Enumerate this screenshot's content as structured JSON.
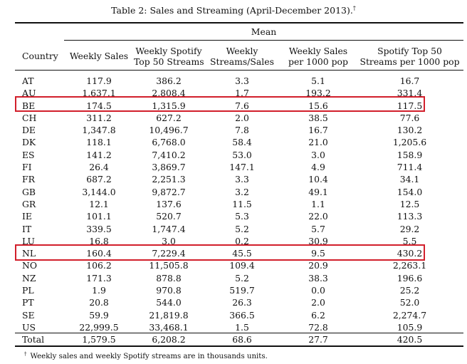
{
  "caption": "Table 2: Sales and Streaming (April-December 2013).",
  "caption_mark": "†",
  "table": {
    "group_header": "Mean",
    "columns": [
      {
        "line1": "Country",
        "line2": ""
      },
      {
        "line1": "Weekly Sales",
        "line2": ""
      },
      {
        "line1": "Weekly Spotify",
        "line2": "Top 50 Streams"
      },
      {
        "line1": "Weekly",
        "line2": "Streams/Sales"
      },
      {
        "line1": "Weekly Sales",
        "line2": "per 1000 pop"
      },
      {
        "line1": "Spotify Top 50",
        "line2": "Streams per 1000 pop"
      }
    ],
    "rows": [
      [
        "AT",
        "117.9",
        "386.2",
        "3.3",
        "5.1",
        "16.7"
      ],
      [
        "AU",
        "1,637.1",
        "2,808.4",
        "1.7",
        "193.2",
        "331.4"
      ],
      [
        "BE",
        "174.5",
        "1,315.9",
        "7.6",
        "15.6",
        "117.5"
      ],
      [
        "CH",
        "311.2",
        "627.2",
        "2.0",
        "38.5",
        "77.6"
      ],
      [
        "DE",
        "1,347.8",
        "10,496.7",
        "7.8",
        "16.7",
        "130.2"
      ],
      [
        "DK",
        "118.1",
        "6,768.0",
        "58.4",
        "21.0",
        "1,205.6"
      ],
      [
        "ES",
        "141.2",
        "7,410.2",
        "53.0",
        "3.0",
        "158.9"
      ],
      [
        "FI",
        "26.4",
        "3,869.7",
        "147.1",
        "4.9",
        "711.4"
      ],
      [
        "FR",
        "687.2",
        "2,251.3",
        "3.3",
        "10.4",
        "34.1"
      ],
      [
        "GB",
        "3,144.0",
        "9,872.7",
        "3.2",
        "49.1",
        "154.0"
      ],
      [
        "GR",
        "12.1",
        "137.6",
        "11.5",
        "1.1",
        "12.5"
      ],
      [
        "IE",
        "101.1",
        "520.7",
        "5.3",
        "22.0",
        "113.3"
      ],
      [
        "IT",
        "339.5",
        "1,747.4",
        "5.2",
        "5.7",
        "29.2"
      ],
      [
        "LU",
        "16.8",
        "3.0",
        "0.2",
        "30.9",
        "5.5"
      ],
      [
        "NL",
        "160.4",
        "7,229.4",
        "45.5",
        "9.5",
        "430.2"
      ],
      [
        "NO",
        "106.2",
        "11,505.8",
        "109.4",
        "20.9",
        "2,263.1"
      ],
      [
        "NZ",
        "171.3",
        "878.8",
        "5.2",
        "38.3",
        "196.6"
      ],
      [
        "PL",
        "1.9",
        "970.8",
        "519.7",
        "0.0",
        "25.2"
      ],
      [
        "PT",
        "20.8",
        "544.0",
        "26.3",
        "2.0",
        "52.0"
      ],
      [
        "SE",
        "59.9",
        "21,819.8",
        "366.5",
        "6.2",
        "2,274.7"
      ],
      [
        "US",
        "22,999.5",
        "33,468.1",
        "1.5",
        "72.8",
        "105.9"
      ]
    ],
    "total": [
      "Total",
      "1,579.5",
      "6,208.2",
      "68.6",
      "27.7",
      "420.5"
    ]
  },
  "highlight_color": "#d21f2b",
  "footnote_mark": "†",
  "footnote": "Weekly sales and weekly Spotify streams are in thousands units."
}
